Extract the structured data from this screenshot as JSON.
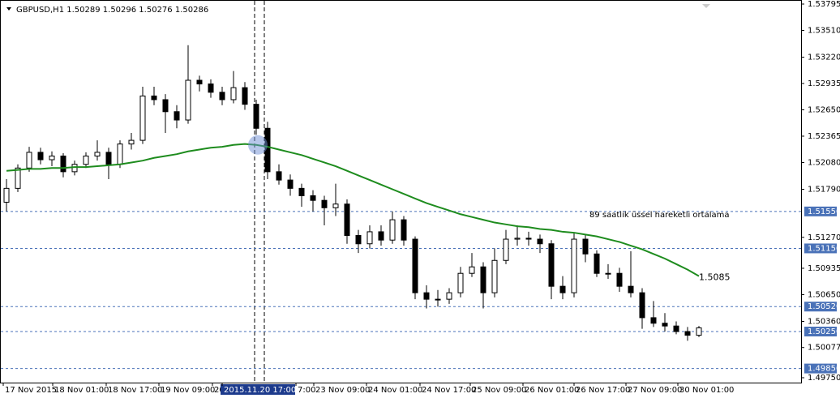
{
  "chart_data": {
    "type": "candlestick",
    "title": "GBPUSD,H1  1.50289 1.50296 1.50276 1.50286",
    "ylim": [
      1.4975,
      1.53795
    ],
    "yticks": [
      {
        "value": 1.53795,
        "label": "1.53795"
      },
      {
        "value": 1.5351,
        "label": "1.53510"
      },
      {
        "value": 1.5322,
        "label": "1.53220"
      },
      {
        "value": 1.52935,
        "label": "1.52935"
      },
      {
        "value": 1.5265,
        "label": "1.52650"
      },
      {
        "value": 1.52365,
        "label": "1.52365"
      },
      {
        "value": 1.5208,
        "label": "1.52080"
      },
      {
        "value": 1.5179,
        "label": "1.51790"
      },
      {
        "value": 1.5127,
        "label": "1.51270"
      },
      {
        "value": 1.50935,
        "label": "1.50935"
      },
      {
        "value": 1.5065,
        "label": "1.50650"
      },
      {
        "value": 1.5036,
        "label": "1.50360"
      },
      {
        "value": 1.50077,
        "label": "1.50077"
      },
      {
        "value": 1.4975,
        "label": "1.49750"
      }
    ],
    "x_labels": [
      "17 Nov 2015",
      "18 Nov 01:00",
      "18 Nov 17:00",
      "19 Nov 09:00",
      "20",
      "2015.11.20 17:00",
      "7:00",
      "23 Nov 09:00",
      "24 Nov 01:00",
      "24 Nov 17:00",
      "25 Nov 09:00",
      "26 Nov 01:00",
      "26 Nov 17:00",
      "27 Nov 09:00",
      "30 Nov 01:00"
    ],
    "candles": [
      [
        1.5165,
        1.519,
        1.5155,
        1.518
      ],
      [
        1.518,
        1.5206,
        1.5176,
        1.5202
      ],
      [
        1.5202,
        1.5225,
        1.5198,
        1.5219
      ],
      [
        1.5219,
        1.5224,
        1.5206,
        1.5211
      ],
      [
        1.5211,
        1.522,
        1.5204,
        1.5215
      ],
      [
        1.5215,
        1.5218,
        1.5192,
        1.5198
      ],
      [
        1.5198,
        1.521,
        1.5194,
        1.5206
      ],
      [
        1.5206,
        1.5219,
        1.5202,
        1.5215
      ],
      [
        1.5215,
        1.5232,
        1.521,
        1.5219
      ],
      [
        1.5219,
        1.5224,
        1.519,
        1.5206
      ],
      [
        1.5206,
        1.5232,
        1.5202,
        1.5228
      ],
      [
        1.5228,
        1.524,
        1.5222,
        1.5232
      ],
      [
        1.5232,
        1.529,
        1.5228,
        1.528
      ],
      [
        1.528,
        1.529,
        1.527,
        1.5276
      ],
      [
        1.5276,
        1.5282,
        1.524,
        1.5263
      ],
      [
        1.5263,
        1.527,
        1.5245,
        1.5254
      ],
      [
        1.5254,
        1.5335,
        1.525,
        1.5297
      ],
      [
        1.5297,
        1.5302,
        1.5285,
        1.5293
      ],
      [
        1.5293,
        1.5298,
        1.5278,
        1.5284
      ],
      [
        1.5284,
        1.529,
        1.527,
        1.5276
      ],
      [
        1.5276,
        1.5307,
        1.5272,
        1.5289
      ],
      [
        1.5289,
        1.5295,
        1.5265,
        1.5271
      ],
      [
        1.5271,
        1.5276,
        1.5238,
        1.5245
      ],
      [
        1.5245,
        1.5252,
        1.519,
        1.5198
      ],
      [
        1.5198,
        1.5206,
        1.5184,
        1.5189
      ],
      [
        1.5189,
        1.5195,
        1.5172,
        1.518
      ],
      [
        1.518,
        1.5185,
        1.516,
        1.5172
      ],
      [
        1.5172,
        1.5178,
        1.5155,
        1.5167
      ],
      [
        1.5167,
        1.5172,
        1.514,
        1.5159
      ],
      [
        1.5159,
        1.5185,
        1.515,
        1.5163
      ],
      [
        1.5163,
        1.5168,
        1.512,
        1.5129
      ],
      [
        1.5129,
        1.5135,
        1.511,
        1.512
      ],
      [
        1.512,
        1.514,
        1.5115,
        1.5133
      ],
      [
        1.5133,
        1.514,
        1.5118,
        1.5124
      ],
      [
        1.5124,
        1.5155,
        1.512,
        1.5146
      ],
      [
        1.5146,
        1.515,
        1.5118,
        1.5124
      ],
      [
        1.5125,
        1.5128,
        1.506,
        1.5067
      ],
      [
        1.5067,
        1.5075,
        1.505,
        1.506
      ],
      [
        1.506,
        1.507,
        1.5052,
        1.506
      ],
      [
        1.506,
        1.5072,
        1.5055,
        1.5067
      ],
      [
        1.5067,
        1.5095,
        1.5062,
        1.5088
      ],
      [
        1.5088,
        1.511,
        1.5084,
        1.5095
      ],
      [
        1.5095,
        1.51,
        1.505,
        1.5067
      ],
      [
        1.5067,
        1.5115,
        1.5062,
        1.5102
      ],
      [
        1.5102,
        1.5135,
        1.5098,
        1.5125
      ],
      [
        1.5125,
        1.514,
        1.5118,
        1.5126
      ],
      [
        1.5126,
        1.5133,
        1.5118,
        1.5125
      ],
      [
        1.5125,
        1.513,
        1.511,
        1.512
      ],
      [
        1.512,
        1.5124,
        1.506,
        1.5074
      ],
      [
        1.5074,
        1.5085,
        1.506,
        1.5067
      ],
      [
        1.5067,
        1.5132,
        1.5062,
        1.5125
      ],
      [
        1.5125,
        1.513,
        1.51,
        1.5109
      ],
      [
        1.5109,
        1.5113,
        1.5084,
        1.5088
      ],
      [
        1.5088,
        1.5098,
        1.5082,
        1.5088
      ],
      [
        1.5088,
        1.5094,
        1.5068,
        1.5074
      ],
      [
        1.5074,
        1.5112,
        1.5062,
        1.5067
      ],
      [
        1.5067,
        1.5072,
        1.5028,
        1.504
      ],
      [
        1.504,
        1.5058,
        1.503,
        1.5034
      ],
      [
        1.5034,
        1.5045,
        1.5025,
        1.5031
      ],
      [
        1.5031,
        1.5036,
        1.5022,
        1.5025
      ],
      [
        1.5025,
        1.503,
        1.5015,
        1.5021
      ],
      [
        1.5021,
        1.5031,
        1.5019,
        1.5029
      ]
    ],
    "series": [
      {
        "name": "89 saatlik üssel hareketli ortalama",
        "color": "#1e8c1e",
        "values": [
          1.5199,
          1.52,
          1.5201,
          1.5201,
          1.5202,
          1.5202,
          1.5203,
          1.5203,
          1.5204,
          1.5205,
          1.5206,
          1.5208,
          1.521,
          1.5213,
          1.5215,
          1.5217,
          1.522,
          1.5222,
          1.5224,
          1.5225,
          1.5227,
          1.5228,
          1.5227,
          1.5225,
          1.5222,
          1.5219,
          1.5216,
          1.5212,
          1.5208,
          1.5204,
          1.5199,
          1.5194,
          1.5189,
          1.5184,
          1.5179,
          1.5174,
          1.5169,
          1.5164,
          1.516,
          1.5156,
          1.5152,
          1.5149,
          1.5146,
          1.5143,
          1.5141,
          1.5139,
          1.5138,
          1.5136,
          1.5135,
          1.5133,
          1.5132,
          1.513,
          1.5128,
          1.5125,
          1.5122,
          1.5118,
          1.5114,
          1.5109,
          1.5104,
          1.5098,
          1.5092,
          1.5085
        ]
      }
    ],
    "end_label": "1.5085",
    "levels": [
      1.5155,
      1.5115,
      1.5052,
      1.5025,
      1.4985
    ],
    "level_labels": [
      "1.51550",
      "1.51150",
      "1.50520",
      "1.50250",
      "1.49850"
    ],
    "level_color": "#4a72b8"
  }
}
